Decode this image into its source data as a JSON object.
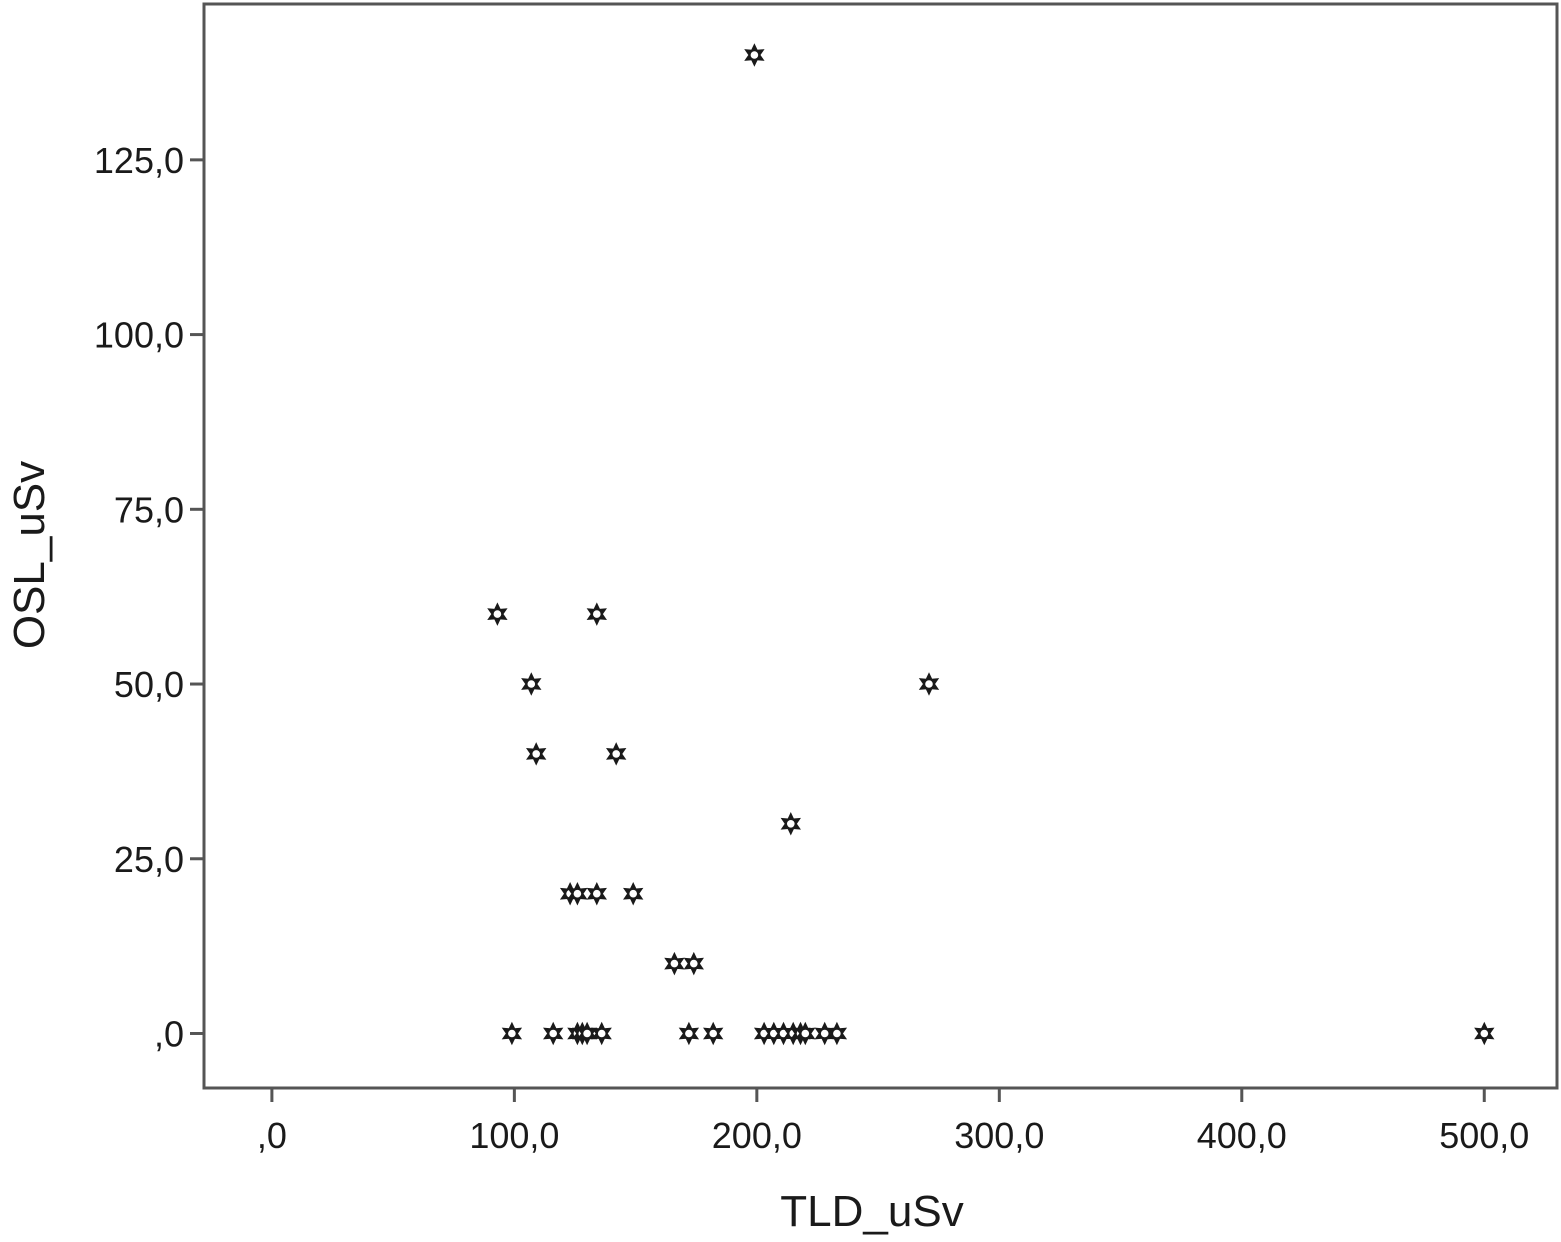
{
  "chart_data": {
    "type": "scatter",
    "title": "",
    "xlabel": "TLD_uSv",
    "ylabel": "OSL_uSv",
    "xlim": [
      -28,
      530
    ],
    "ylim": [
      -7.8,
      147.3
    ],
    "grid": false,
    "legend": "none",
    "marker": "star-circle",
    "colors": {
      "plot_bg": "#ffffff",
      "frame": "#555555",
      "marker_fill": "#ffffff",
      "marker_stroke": "#1a1a1a",
      "text": "#1a1a1a"
    },
    "x_ticks": [
      {
        "value": 0,
        "label": ",0"
      },
      {
        "value": 100,
        "label": "100,0"
      },
      {
        "value": 200,
        "label": "200,0"
      },
      {
        "value": 300,
        "label": "300,0"
      },
      {
        "value": 400,
        "label": "400,0"
      },
      {
        "value": 500,
        "label": "500,0"
      }
    ],
    "y_ticks": [
      {
        "value": 0,
        "label": ",0"
      },
      {
        "value": 25,
        "label": "25,0"
      },
      {
        "value": 50,
        "label": "50,0"
      },
      {
        "value": 75,
        "label": "75,0"
      },
      {
        "value": 100,
        "label": "100,0"
      },
      {
        "value": 125,
        "label": "125,0"
      }
    ],
    "points": [
      {
        "x": 199,
        "y": 140
      },
      {
        "x": 93,
        "y": 60
      },
      {
        "x": 134,
        "y": 60
      },
      {
        "x": 107,
        "y": 50
      },
      {
        "x": 271,
        "y": 50
      },
      {
        "x": 109,
        "y": 40
      },
      {
        "x": 142,
        "y": 40
      },
      {
        "x": 214,
        "y": 30
      },
      {
        "x": 123,
        "y": 20
      },
      {
        "x": 126,
        "y": 20
      },
      {
        "x": 134,
        "y": 20
      },
      {
        "x": 149,
        "y": 20
      },
      {
        "x": 166,
        "y": 10
      },
      {
        "x": 174,
        "y": 10
      },
      {
        "x": 99,
        "y": 0
      },
      {
        "x": 116,
        "y": 0
      },
      {
        "x": 126,
        "y": 0
      },
      {
        "x": 128,
        "y": 0
      },
      {
        "x": 130,
        "y": 0
      },
      {
        "x": 136,
        "y": 0
      },
      {
        "x": 172,
        "y": 0
      },
      {
        "x": 182,
        "y": 0
      },
      {
        "x": 203,
        "y": 0
      },
      {
        "x": 207,
        "y": 0
      },
      {
        "x": 211,
        "y": 0
      },
      {
        "x": 215,
        "y": 0
      },
      {
        "x": 218,
        "y": 0
      },
      {
        "x": 220,
        "y": 0
      },
      {
        "x": 228,
        "y": 0
      },
      {
        "x": 233,
        "y": 0
      },
      {
        "x": 500,
        "y": 0
      }
    ]
  }
}
